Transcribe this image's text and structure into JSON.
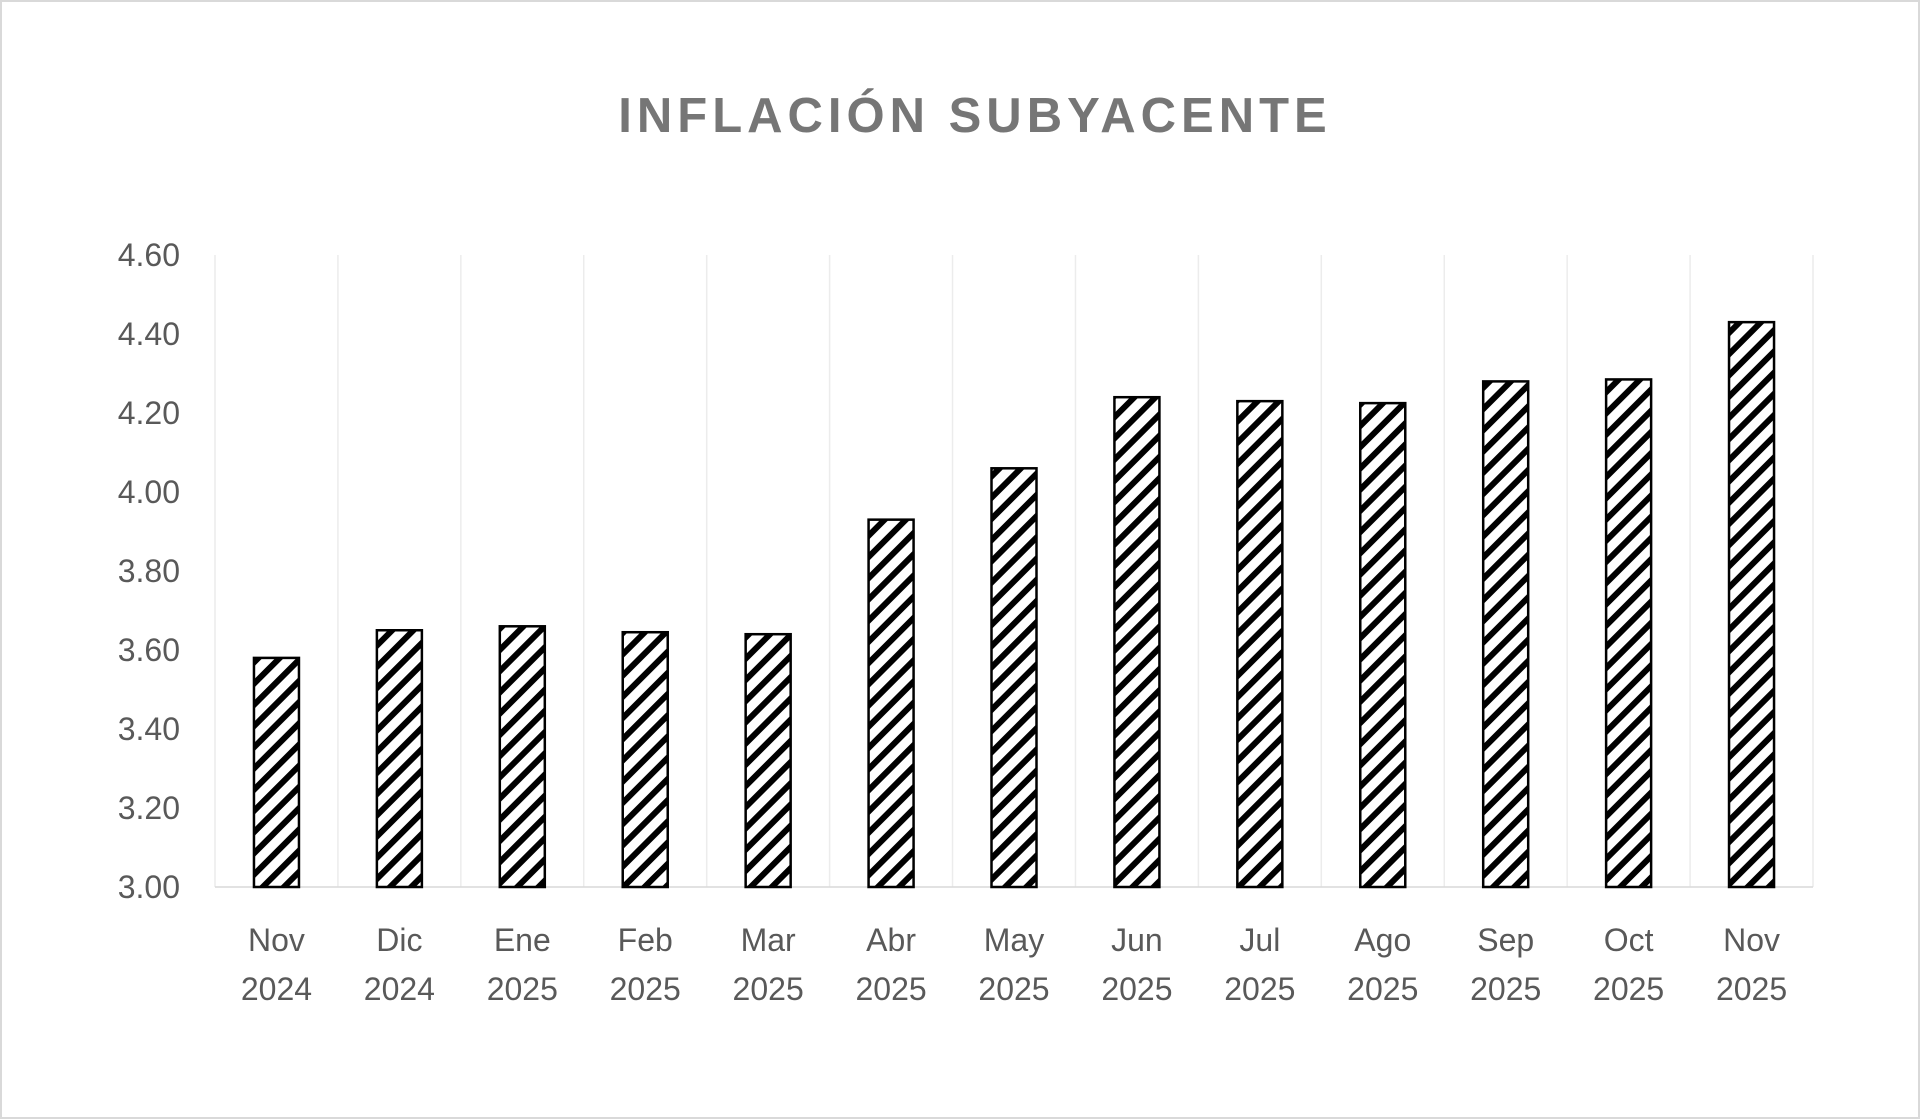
{
  "chart_data": {
    "type": "bar",
    "title": "INFLACIÓN SUBYACENTE",
    "xlabel": "",
    "ylabel": "",
    "categories": [
      [
        "Nov",
        "2024"
      ],
      [
        "Dic",
        "2024"
      ],
      [
        "Ene",
        "2025"
      ],
      [
        "Feb",
        "2025"
      ],
      [
        "Mar",
        "2025"
      ],
      [
        "Abr",
        "2025"
      ],
      [
        "May",
        "2025"
      ],
      [
        "Jun",
        "2025"
      ],
      [
        "Jul",
        "2025"
      ],
      [
        "Ago",
        "2025"
      ],
      [
        "Sep",
        "2025"
      ],
      [
        "Oct",
        "2025"
      ],
      [
        "Nov",
        "2025"
      ]
    ],
    "values": [
      3.58,
      3.65,
      3.66,
      3.645,
      3.64,
      3.93,
      4.06,
      4.24,
      4.23,
      4.225,
      4.28,
      4.285,
      4.43
    ],
    "ylim": [
      3.0,
      4.6
    ],
    "yticks": [
      "3.00",
      "3.20",
      "3.40",
      "3.60",
      "3.80",
      "4.00",
      "4.20",
      "4.40",
      "4.60"
    ],
    "grid": "vertical category separators",
    "legend": "none",
    "bar_fill": "diagonal black hatch on white",
    "colors": {
      "bar_stroke": "#000000",
      "title": "#767676",
      "tick_labels": "#595959"
    }
  }
}
